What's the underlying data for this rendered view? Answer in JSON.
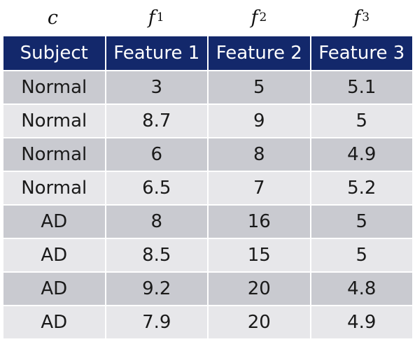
{
  "symbols": [
    {
      "main": "c",
      "sub": ""
    },
    {
      "main": "f",
      "sub": "1"
    },
    {
      "main": "f",
      "sub": "2"
    },
    {
      "main": "f",
      "sub": "3"
    }
  ],
  "table": {
    "headers": [
      "Subject",
      "Feature 1",
      "Feature 2",
      "Feature 3"
    ],
    "rows": [
      [
        "Normal",
        "3",
        "5",
        "5.1"
      ],
      [
        "Normal",
        "8.7",
        "9",
        "5"
      ],
      [
        "Normal",
        "6",
        "8",
        "4.9"
      ],
      [
        "Normal",
        "6.5",
        "7",
        "5.2"
      ],
      [
        "AD",
        "8",
        "16",
        "5"
      ],
      [
        "AD",
        "8.5",
        "15",
        "5"
      ],
      [
        "AD",
        "9.2",
        "20",
        "4.8"
      ],
      [
        "AD",
        "7.9",
        "20",
        "4.9"
      ]
    ]
  },
  "colors": {
    "header_bg": "#13286b",
    "row_dark": "#c9cad0",
    "row_light": "#e7e7ea"
  }
}
